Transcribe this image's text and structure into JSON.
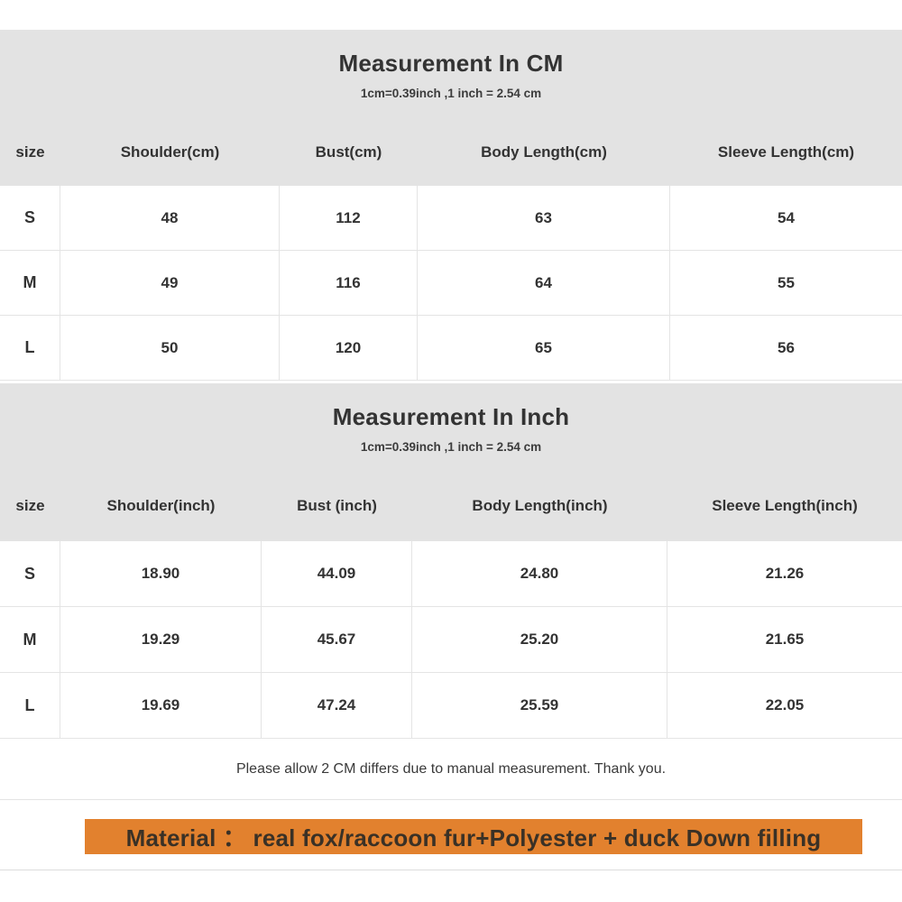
{
  "colors": {
    "section_header_bg": "#e3e3e3",
    "table_border": "#e4e4e4",
    "text": "#333333",
    "banner_bg": "#e2812e",
    "banner_text": "#3a3126"
  },
  "cm": {
    "title": "Measurement In CM",
    "subtitle": "1cm=0.39inch ,1 inch = 2.54 cm",
    "columns": [
      "size",
      "Shoulder(cm)",
      "Bust(cm)",
      "Body Length(cm)",
      "Sleeve Length(cm)"
    ],
    "rows": [
      [
        "S",
        "48",
        "112",
        "63",
        "54"
      ],
      [
        "M",
        "49",
        "116",
        "64",
        "55"
      ],
      [
        "L",
        "50",
        "120",
        "65",
        "56"
      ]
    ]
  },
  "inch": {
    "title": "Measurement In Inch",
    "subtitle": "1cm=0.39inch ,1 inch = 2.54 cm",
    "columns": [
      "size",
      "Shoulder(inch)",
      "Bust (inch)",
      "Body Length(inch)",
      "Sleeve Length(inch)"
    ],
    "rows": [
      [
        "S",
        "18.90",
        "44.09",
        "24.80",
        "21.26"
      ],
      [
        "M",
        "19.29",
        "45.67",
        "25.20",
        "21.65"
      ],
      [
        "L",
        "19.69",
        "47.24",
        "25.59",
        "22.05"
      ]
    ]
  },
  "note": "Please allow 2 CM differs due to manual measurement. Thank you.",
  "material": "Material ：  real fox/raccoon fur+Polyester + duck Down filling"
}
